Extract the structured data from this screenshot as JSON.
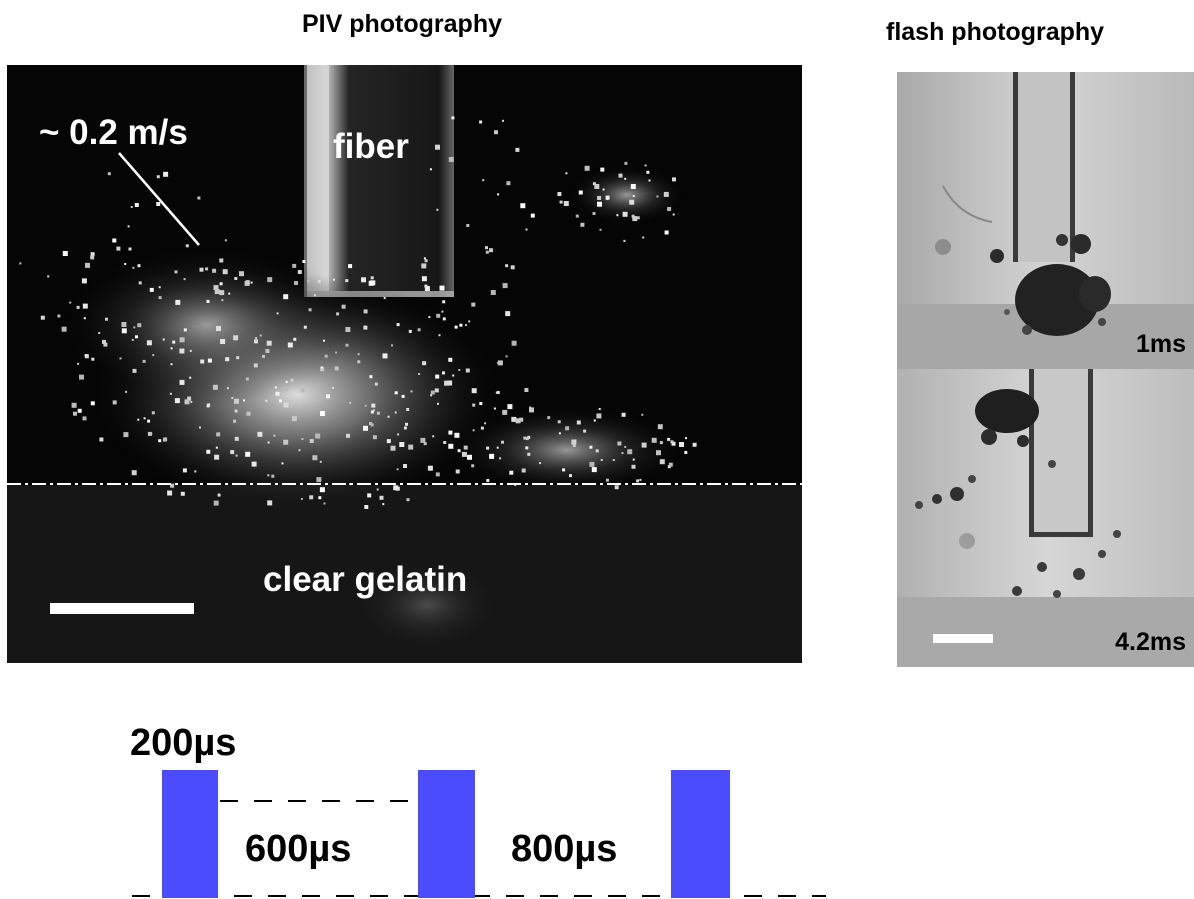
{
  "titles": {
    "piv": "PIV photography",
    "flash": "flash photography"
  },
  "piv_panel": {
    "velocity_label": "~ 0.2 m/s",
    "fiber_label": "fiber",
    "gelatin_label": "clear gelatin"
  },
  "flash_panels": [
    {
      "time_label": "1ms"
    },
    {
      "time_label": "4.2ms"
    }
  ],
  "timing": {
    "pulse_width_label": "200µs",
    "gap1_label": "600µs",
    "gap2_label": "800µs",
    "pulse_color": "#4c4cff"
  }
}
